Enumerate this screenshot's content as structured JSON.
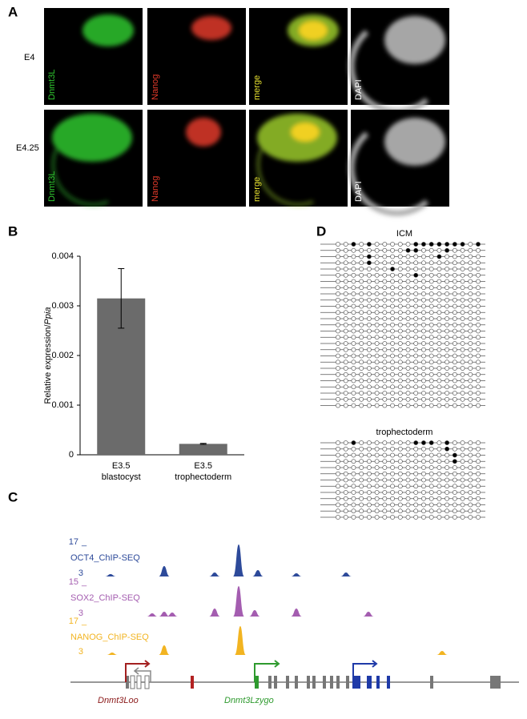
{
  "panel_labels": [
    "A",
    "B",
    "C",
    "D"
  ],
  "panel_a": {
    "rows": [
      "E4",
      "E4.25"
    ],
    "channels": [
      "Dnmt3L",
      "Nanog",
      "merge",
      "DAPI"
    ]
  },
  "chart_data": {
    "type": "bar",
    "categories": [
      [
        "E3.5",
        "blastocyst"
      ],
      [
        "E3.5",
        "trophectoderm"
      ]
    ],
    "values": [
      0.00315,
      0.00022
    ],
    "errors": [
      0.0006,
      1e-05
    ],
    "color": "#6b6b6b",
    "y_label": [
      "Relative expression/",
      "Ppia"
    ],
    "ylim": [
      0,
      0.004
    ],
    "yticks": [
      0,
      0.001,
      0.002,
      0.003,
      0.004
    ]
  },
  "panel_c": {
    "tracks": [
      {
        "name": "OCT4_ChIP-SEQ",
        "max": 17,
        "min": 3,
        "color": "#2d4a9a"
      },
      {
        "name": "SOX2_ChIP-SEQ",
        "max": 15,
        "min": 3,
        "color": "#a45db0"
      },
      {
        "name": "NANOG_ChIP-SEQ",
        "max": 17,
        "min": 3,
        "color": "#f2b421"
      }
    ],
    "genes": [
      {
        "name": "Dnmt3Loo",
        "color": "#8b1a1a"
      },
      {
        "name": "Dnmt3Lzygo",
        "color": "#2e9a2e"
      }
    ]
  },
  "panel_d": {
    "cpg_sites": 19,
    "groups": [
      {
        "title": "ICM",
        "methylated": [
          [
            2,
            4,
            10,
            11,
            12,
            13,
            14,
            15,
            16,
            18
          ],
          [
            9,
            10,
            14
          ],
          [
            4,
            13
          ],
          [
            4
          ],
          [
            7
          ],
          [
            10
          ],
          [],
          [],
          [],
          [],
          [],
          [],
          [],
          [],
          [],
          [],
          [],
          [],
          [],
          [],
          [],
          [],
          [],
          [],
          [],
          [],
          []
        ]
      },
      {
        "title": "trophectoderm",
        "methylated": [
          [
            2,
            10,
            11,
            12,
            14
          ],
          [
            14
          ],
          [
            15
          ],
          [
            15
          ],
          [],
          [],
          [],
          [],
          [],
          [],
          [],
          [],
          []
        ]
      }
    ]
  }
}
